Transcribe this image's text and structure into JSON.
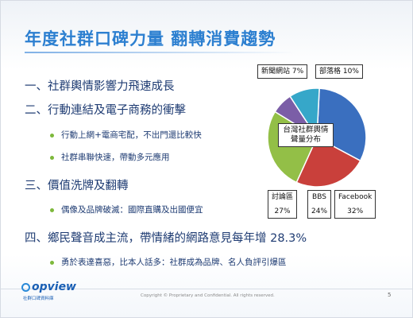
{
  "slide": {
    "title": "年度社群口碑力量 翻轉消費趨勢",
    "page_number": "5",
    "copyright": "Copyright © Proprietary and Confidential. All rights reserved.",
    "logo_name": "opview",
    "logo_sub": "社群口碑資料庫"
  },
  "bullets": [
    {
      "text": "一、社群輿情影響力飛速成長"
    },
    {
      "text": "二、行動連結及電子商務的衝擊",
      "sub": [
        "行動上網+電商宅配，不出門還比較快",
        "社群串聯快速，帶動多元應用"
      ]
    },
    {
      "text": "三、價值洗牌及翻轉",
      "sub": [
        "偶像及品牌破滅：國際直購及出國便宜"
      ]
    },
    {
      "text": "四、鄉民聲音成主流，帶情緒的網路意見每年增 28.3%",
      "sub": [
        "勇於表達喜惡，比本人話多：社群成為品牌、名人負評引爆區"
      ]
    }
  ],
  "chart_data": {
    "type": "pie",
    "title": "台灣社群輿情聲量分布",
    "slices": [
      {
        "label": "Facebook",
        "value": 32,
        "display": "32%",
        "color": "#3a6fbf"
      },
      {
        "label": "BBS",
        "value": 24,
        "display": "24%",
        "color": "#c9403b"
      },
      {
        "label": "討論區",
        "value": 27,
        "display": "27%",
        "color": "#93bf47"
      },
      {
        "label": "新聞網站",
        "value": 7,
        "display": "7%",
        "color": "#7b5ea7"
      },
      {
        "label": "部落格",
        "value": 10,
        "display": "10%",
        "color": "#36a7c9"
      }
    ]
  }
}
